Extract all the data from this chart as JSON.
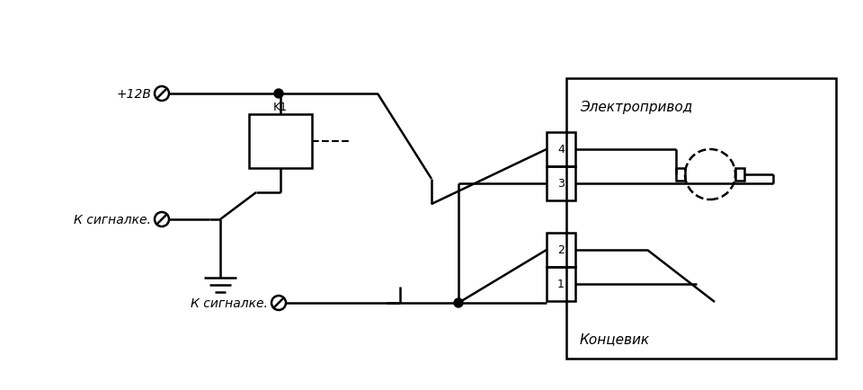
{
  "bg_color": "#ffffff",
  "line_color": "#000000",
  "fig_width": 9.6,
  "fig_height": 4.35,
  "labels": {
    "plus12v": "+12В",
    "k_signal_top": "К сигналке.",
    "k_signal_bot": "К сигналке.",
    "k1": "K1",
    "electroprivod": "Электропривод",
    "konchevik": "Концевик",
    "pin4": "4",
    "pin3": "3",
    "pin2": "2",
    "pin1": "1"
  }
}
